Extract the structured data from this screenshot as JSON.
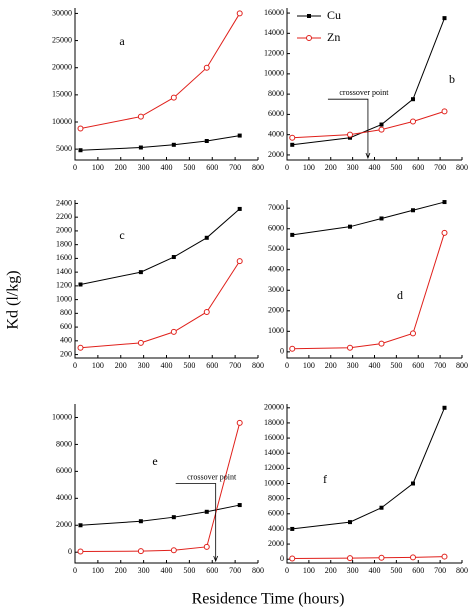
{
  "figure": {
    "ylabel": "Kd (l/kg)",
    "xlabel": "Residence Time (hours)"
  },
  "chart_data": [
    {
      "type": "line",
      "label": "a",
      "x": [
        24,
        288,
        432,
        576,
        720
      ],
      "xlim": [
        0,
        800
      ],
      "xticks": [
        0,
        100,
        200,
        300,
        400,
        500,
        600,
        700,
        800
      ],
      "ylim": [
        3000,
        31000
      ],
      "yticks": [
        5000,
        10000,
        15000,
        20000,
        25000,
        30000
      ],
      "series": [
        {
          "color": "#000000",
          "values": [
            4800,
            5300,
            5800,
            6500,
            7500
          ]
        },
        {
          "color": "#e0201b",
          "values": [
            8800,
            11000,
            14500,
            20000,
            30000
          ]
        }
      ]
    },
    {
      "type": "line",
      "label": "b",
      "x": [
        24,
        288,
        432,
        576,
        720
      ],
      "xlim": [
        0,
        800
      ],
      "xticks": [
        0,
        100,
        200,
        300,
        400,
        500,
        600,
        700,
        800
      ],
      "ylim": [
        1500,
        16500
      ],
      "yticks": [
        2000,
        4000,
        6000,
        8000,
        10000,
        12000,
        14000,
        16000
      ],
      "legend": "upper left",
      "annotation": {
        "text": "crossover point",
        "x": 370
      },
      "series": [
        {
          "name": "Cu",
          "color": "#000000",
          "values": [
            3000,
            3700,
            5000,
            7500,
            15500
          ]
        },
        {
          "name": "Zn",
          "color": "#e0201b",
          "values": [
            3700,
            4000,
            4500,
            5300,
            6300
          ]
        }
      ]
    },
    {
      "type": "line",
      "label": "c",
      "x": [
        24,
        288,
        432,
        576,
        720
      ],
      "xlim": [
        0,
        800
      ],
      "xticks": [
        0,
        100,
        200,
        300,
        400,
        500,
        600,
        700,
        800
      ],
      "ylim": [
        150,
        2450
      ],
      "yticks": [
        200,
        400,
        600,
        800,
        1000,
        1200,
        1400,
        1600,
        1800,
        2000,
        2200,
        2400
      ],
      "series": [
        {
          "color": "#000000",
          "values": [
            1220,
            1400,
            1620,
            1900,
            2320
          ]
        },
        {
          "color": "#e0201b",
          "values": [
            300,
            370,
            530,
            820,
            1560
          ]
        }
      ]
    },
    {
      "type": "line",
      "label": "d",
      "x": [
        24,
        288,
        432,
        576,
        720
      ],
      "xlim": [
        0,
        800
      ],
      "xticks": [
        0,
        100,
        200,
        300,
        400,
        500,
        600,
        700,
        800
      ],
      "ylim": [
        -300,
        7400
      ],
      "yticks": [
        0,
        1000,
        2000,
        3000,
        4000,
        5000,
        6000,
        7000
      ],
      "series": [
        {
          "color": "#000000",
          "values": [
            5700,
            6100,
            6500,
            6900,
            7300
          ]
        },
        {
          "color": "#e0201b",
          "values": [
            150,
            200,
            400,
            900,
            5800
          ]
        }
      ]
    },
    {
      "type": "line",
      "label": "e",
      "x": [
        24,
        288,
        432,
        576,
        720
      ],
      "xlim": [
        0,
        800
      ],
      "xticks": [
        0,
        100,
        200,
        300,
        400,
        500,
        600,
        700,
        800
      ],
      "ylim": [
        -800,
        11000
      ],
      "yticks": [
        0,
        2000,
        4000,
        6000,
        8000,
        10000
      ],
      "annotation": {
        "text": "crossover point",
        "x": 615
      },
      "series": [
        {
          "color": "#000000",
          "values": [
            2000,
            2300,
            2600,
            3000,
            3500
          ]
        },
        {
          "color": "#e0201b",
          "values": [
            50,
            80,
            150,
            400,
            9600
          ]
        }
      ]
    },
    {
      "type": "line",
      "label": "f",
      "x": [
        24,
        288,
        432,
        576,
        720
      ],
      "xlim": [
        0,
        800
      ],
      "xticks": [
        0,
        100,
        200,
        300,
        400,
        500,
        600,
        700,
        800
      ],
      "ylim": [
        -500,
        20500
      ],
      "yticks": [
        0,
        2000,
        4000,
        6000,
        8000,
        10000,
        12000,
        14000,
        16000,
        18000,
        20000
      ],
      "series": [
        {
          "color": "#000000",
          "values": [
            4000,
            4900,
            6800,
            10000,
            20000
          ]
        },
        {
          "color": "#e0201b",
          "values": [
            100,
            150,
            200,
            250,
            350
          ]
        }
      ]
    }
  ]
}
